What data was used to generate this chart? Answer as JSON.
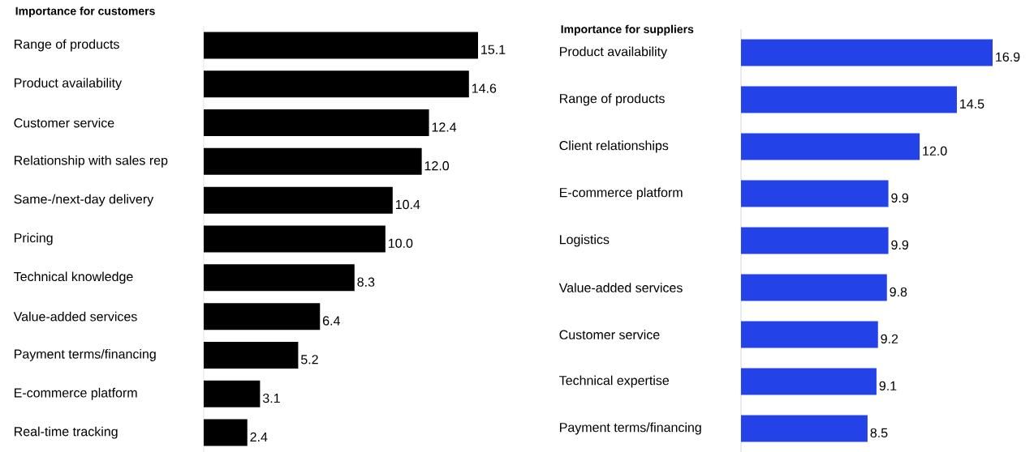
{
  "chart_data": [
    {
      "type": "bar",
      "orientation": "horizontal",
      "title": "Importance for customers",
      "categories": [
        "Range of products",
        "Product availability",
        "Customer service",
        "Relationship with sales rep",
        "Same-/next-day delivery",
        "Pricing",
        "Technical knowledge",
        "Value-added services",
        "Payment terms/financing",
        "E-commerce platform",
        "Real-time tracking"
      ],
      "values": [
        15.1,
        14.6,
        12.4,
        12.0,
        10.4,
        10.0,
        8.3,
        6.4,
        5.2,
        3.1,
        2.4
      ],
      "color": "#000000",
      "value_labels": [
        "15.1",
        "14.6",
        "12.4",
        "12.0",
        "10.4",
        "10.0",
        "8.3",
        "6.4",
        "5.2",
        "3.1",
        "2.4"
      ]
    },
    {
      "type": "bar",
      "orientation": "horizontal",
      "title": "Importance for suppliers",
      "categories": [
        "Product availability",
        "Range of products",
        "Client relationships",
        "E-commerce platform",
        "Logistics",
        "Value-added services",
        "Customer service",
        "Technical expertise",
        "Payment terms/financing"
      ],
      "values": [
        16.9,
        14.5,
        12.0,
        9.9,
        9.9,
        9.8,
        9.2,
        9.1,
        8.5
      ],
      "color": "#2342e8",
      "value_labels": [
        "16.9",
        "14.5",
        "12.0",
        "9.9",
        "9.9",
        "9.8",
        "9.2",
        "9.1",
        "8.5"
      ]
    }
  ]
}
